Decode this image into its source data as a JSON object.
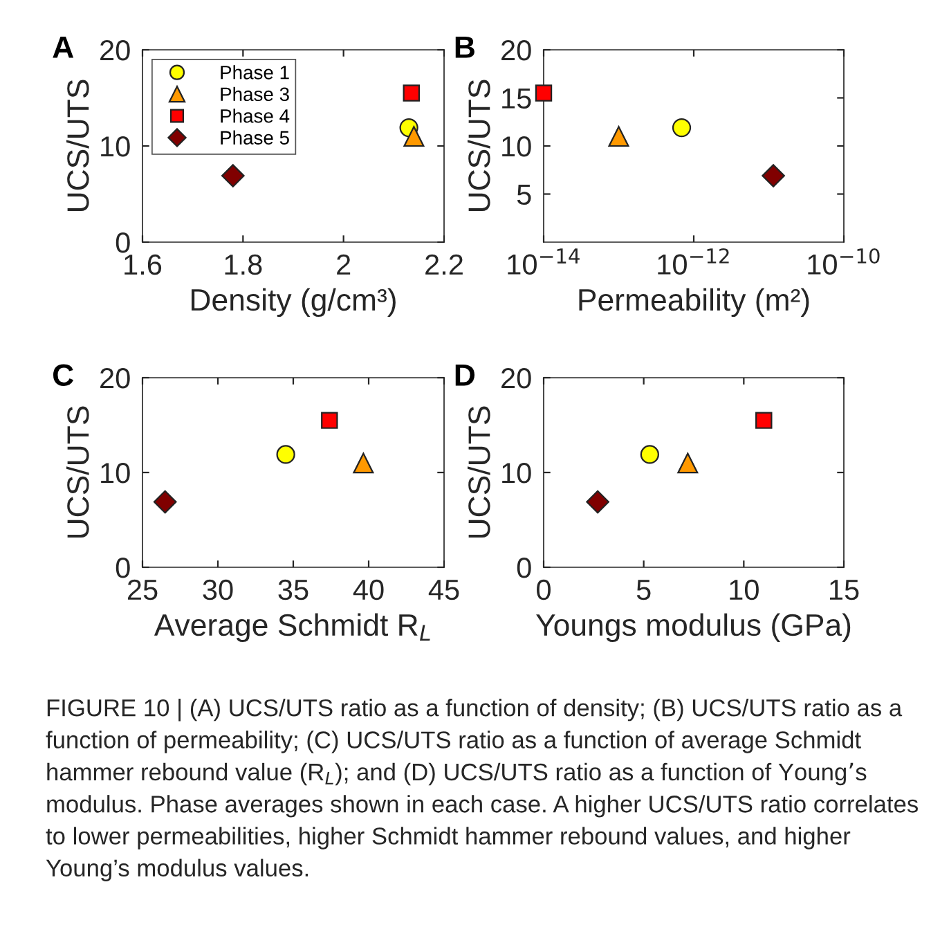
{
  "chart_data": [
    {
      "type": "scatter",
      "title": "A",
      "xlabel": "Density (g/cm³)",
      "ylabel": "UCS/UTS",
      "xlim": [
        1.6,
        2.2
      ],
      "xticks": [
        1.6,
        1.8,
        2,
        2.2
      ],
      "ylim": [
        0,
        20
      ],
      "yticks": [
        0,
        10,
        20
      ],
      "grid": false,
      "legend": "top left",
      "series": [
        {
          "name": "Phase 1",
          "color": "#ffff00",
          "marker": "circle",
          "x": [
            2.13
          ],
          "values": [
            11.9
          ]
        },
        {
          "name": "Phase 3",
          "color": "#ff9900",
          "marker": "triangle",
          "x": [
            2.14
          ],
          "values": [
            11.0
          ]
        },
        {
          "name": "Phase 4",
          "color": "#ff0000",
          "marker": "square",
          "x": [
            2.135
          ],
          "values": [
            15.5
          ]
        },
        {
          "name": "Phase 5",
          "color": "#800000",
          "marker": "diamond",
          "x": [
            1.78
          ],
          "values": [
            6.9
          ]
        }
      ]
    },
    {
      "type": "scatter",
      "title": "B",
      "xlabel": "Permeability (m²)",
      "ylabel": "UCS/UTS",
      "log": "x",
      "xlim": [
        1e-14,
        1e-10
      ],
      "xticks": [
        {
          "value": 1e-14,
          "label": "10$^{−14}$"
        },
        {
          "value": 1e-12,
          "label": "10$^{−12}$"
        },
        {
          "value": 1e-10,
          "label": "10$^{−10}$"
        }
      ],
      "ylim": [
        0,
        20
      ],
      "yticks": [
        5,
        10,
        15,
        20
      ],
      "grid": false,
      "series": [
        {
          "color": "#ffff00",
          "marker": "circle",
          "x": [
            6.9e-13
          ],
          "values": [
            11.9
          ]
        },
        {
          "color": "#ff9900",
          "marker": "triangle",
          "x": [
            1e-13
          ],
          "values": [
            11.0
          ]
        },
        {
          "color": "#ff0000",
          "marker": "square",
          "x": [
            1e-14
          ],
          "values": [
            15.5
          ]
        },
        {
          "color": "#800000",
          "marker": "diamond",
          "x": [
            1.15e-11
          ],
          "values": [
            6.9
          ]
        }
      ]
    },
    {
      "type": "scatter",
      "title": "C",
      "xlabel": "Average Schmidt R$_{L}$",
      "ylabel": "UCS/UTS",
      "xlim": [
        25,
        45
      ],
      "xticks": [
        25,
        30,
        35,
        40,
        45
      ],
      "ylim": [
        0,
        20
      ],
      "yticks": [
        0,
        10,
        20
      ],
      "grid": false,
      "series": [
        {
          "color": "#ffff00",
          "marker": "circle",
          "x": [
            34.5
          ],
          "values": [
            11.9
          ]
        },
        {
          "color": "#ff9900",
          "marker": "triangle",
          "x": [
            39.65
          ],
          "values": [
            11.0
          ]
        },
        {
          "color": "#ff0000",
          "marker": "square",
          "x": [
            37.4
          ],
          "values": [
            15.5
          ]
        },
        {
          "color": "#800000",
          "marker": "diamond",
          "x": [
            26.5
          ],
          "values": [
            6.9
          ]
        }
      ]
    },
    {
      "type": "scatter",
      "title": "D",
      "xlabel": "Youngs modulus (GPa)",
      "ylabel": "UCS/UTS",
      "xlim": [
        0,
        15
      ],
      "xticks": [
        0,
        5,
        10,
        15
      ],
      "ylim": [
        0,
        20
      ],
      "yticks": [
        0,
        10,
        20
      ],
      "grid": false,
      "annotations": [
        "FIGURE 10 | (A) UCS/UTS ratio as a function of density; (B) UCS/UTS ratio as a function of permeability; (C) UCS/UTS ratio as a function of average Schmidt hammer rebound value (R$_{L}$); and (D) UCS/UTS ratio as a function of Young’s modulus. Phase averages shown in each case. A higher UCS/UTS ratio correlates to lower permeabilities, higher Schmidt hammer rebound values, and higher Young’s modulus values."
      ],
      "series": [
        {
          "color": "#ffff00",
          "marker": "circle",
          "x": [
            5.3
          ],
          "values": [
            11.9
          ]
        },
        {
          "color": "#ff9900",
          "marker": "triangle",
          "x": [
            7.2
          ],
          "values": [
            11.0
          ]
        },
        {
          "color": "#ff0000",
          "marker": "square",
          "x": [
            11.0
          ],
          "values": [
            15.5
          ]
        },
        {
          "color": "#800000",
          "marker": "diamond",
          "x": [
            2.7
          ],
          "values": [
            6.9
          ]
        }
      ]
    }
  ]
}
